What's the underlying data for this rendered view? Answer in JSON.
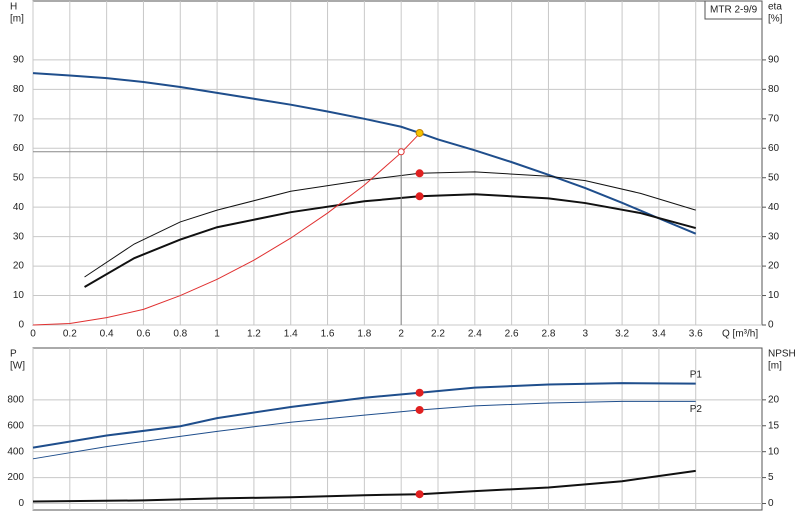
{
  "chart_data": [
    {
      "type": "line",
      "title": "MTR 2-9/9",
      "x_label": "Q [m³/h]",
      "y_label": "H",
      "y_unit": "[m]",
      "y2_label": "eta",
      "y2_unit": "[%]",
      "xlim": [
        0,
        3.96
      ],
      "xticks": [
        0,
        0.2,
        0.4,
        0.6,
        0.8,
        1.0,
        1.2,
        1.4,
        1.6,
        1.8,
        2.0,
        2.2,
        2.4,
        2.6,
        2.8,
        3.0,
        3.2,
        3.4,
        3.6
      ],
      "show_xtick_labels": true,
      "ylim": [
        0,
        110
      ],
      "yticks": [
        0,
        10,
        20,
        30,
        40,
        50,
        60,
        70,
        80,
        90
      ],
      "y2lim": [
        0,
        110
      ],
      "y2ticks": [
        0,
        10,
        20,
        30,
        40,
        50,
        60,
        70,
        80,
        90
      ],
      "grid": true,
      "series": [
        {
          "color": "#1f4e8c",
          "width": 2,
          "x": [
            0,
            0.2,
            0.4,
            0.6,
            0.8,
            1.0,
            1.2,
            1.4,
            1.6,
            1.8,
            2.0,
            2.1,
            2.2,
            2.4,
            2.6,
            2.8,
            3.0,
            3.2,
            3.4,
            3.6
          ],
          "values": [
            85.5,
            84.7,
            83.8,
            82.5,
            80.8,
            78.8,
            76.8,
            74.8,
            72.5,
            70,
            67.3,
            65.2,
            63,
            59.3,
            55.3,
            51,
            46.5,
            41.5,
            36.2,
            31
          ]
        },
        {
          "color": "#111111",
          "width": 1,
          "axis": "y2",
          "x": [
            0.28,
            0.55,
            0.8,
            1.0,
            1.4,
            1.8,
            2.1,
            2.4,
            2.8,
            3.0,
            3.3,
            3.6
          ],
          "values": [
            16.3,
            27.5,
            35,
            39,
            45.4,
            49.2,
            51.5,
            52,
            50.5,
            49,
            44.7,
            39
          ]
        },
        {
          "color": "#111111",
          "width": 2,
          "axis": "y2",
          "x": [
            0.28,
            0.55,
            0.8,
            1.0,
            1.4,
            1.8,
            2.1,
            2.4,
            2.8,
            3.0,
            3.3,
            3.6
          ],
          "values": [
            12.9,
            22.7,
            29,
            33.2,
            38.3,
            42,
            43.7,
            44.4,
            43,
            41.4,
            38,
            32.9
          ]
        },
        {
          "color": "#e03030",
          "width": 1,
          "x": [
            0,
            0.2,
            0.4,
            0.6,
            0.8,
            1.0,
            1.2,
            1.4,
            1.6,
            1.8,
            2.0,
            2.1
          ],
          "values": [
            0,
            0.5,
            2.5,
            5.3,
            10,
            15.5,
            22,
            29.5,
            38,
            47.5,
            58.5,
            65
          ]
        }
      ],
      "points": [
        {
          "x": 2.0,
          "y": 58.8,
          "color": "#e03030",
          "open": true,
          "guide": true
        },
        {
          "x": 2.1,
          "y": 65.2,
          "color": "#f5c400"
        },
        {
          "x": 2.1,
          "y": 51.5,
          "color": "#e02020"
        },
        {
          "x": 2.1,
          "y": 43.7,
          "color": "#e02020"
        }
      ]
    },
    {
      "type": "line",
      "y_label": "P",
      "y_unit": "[W]",
      "y2_label": "NPSH",
      "y2_unit": "[m]",
      "xlim": [
        0,
        3.96
      ],
      "xticks": [
        0,
        0.2,
        0.4,
        0.6,
        0.8,
        1.0,
        1.2,
        1.4,
        1.6,
        1.8,
        2.0,
        2.2,
        2.4,
        2.6,
        2.8,
        3.0,
        3.2,
        3.4,
        3.6
      ],
      "show_xtick_labels": false,
      "ylim": [
        -50,
        1200
      ],
      "yticks": [
        0,
        200,
        400,
        600,
        800
      ],
      "y2lim": [
        -1.25,
        30
      ],
      "y2ticks": [
        0,
        5,
        10,
        15,
        20
      ],
      "grid": true,
      "series": [
        {
          "name": "P1",
          "color": "#1f4e8c",
          "width": 2,
          "x": [
            0,
            0.4,
            0.8,
            1.0,
            1.4,
            1.8,
            2.1,
            2.4,
            2.8,
            3.2,
            3.6
          ],
          "values": [
            431,
            525,
            596,
            659,
            745,
            816,
            855,
            894,
            918,
            929,
            925
          ]
        },
        {
          "name": "P2",
          "color": "#1f4e8c",
          "width": 1,
          "x": [
            0,
            0.4,
            0.8,
            1.0,
            1.4,
            1.8,
            2.1,
            2.4,
            2.8,
            3.2,
            3.6
          ],
          "values": [
            345,
            439,
            518,
            557,
            627,
            682,
            722,
            753,
            776,
            788,
            788
          ]
        },
        {
          "color": "#111111",
          "width": 2,
          "axis": "y2",
          "x": [
            0,
            0.6,
            1.0,
            1.4,
            1.8,
            2.1,
            2.4,
            2.8,
            3.2,
            3.6
          ],
          "values": [
            0.4,
            0.6,
            1.0,
            1.2,
            1.6,
            1.8,
            2.4,
            3.1,
            4.3,
            6.3
          ]
        }
      ],
      "points": [
        {
          "x": 2.1,
          "y": 855,
          "color": "#e02020"
        },
        {
          "x": 2.1,
          "y": 722,
          "color": "#e02020"
        },
        {
          "x": 2.1,
          "y": 1.8,
          "color": "#e02020",
          "axis": "y2"
        }
      ]
    }
  ]
}
